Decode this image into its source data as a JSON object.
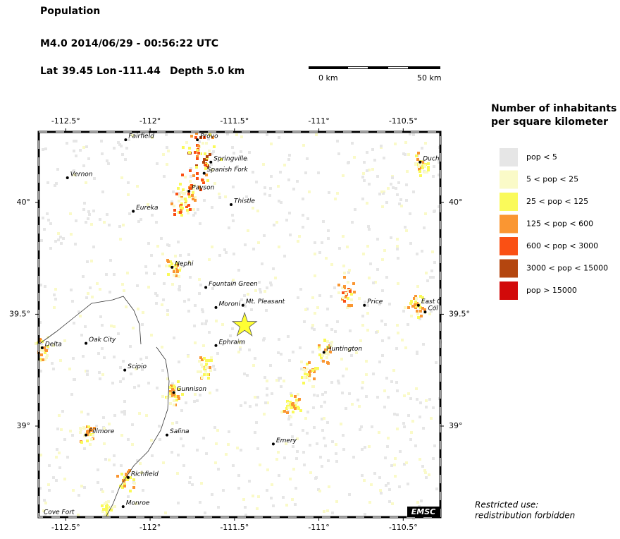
{
  "header": {
    "title": "Population",
    "event": "M4.0  2014/06/29 - 00:56:22 UTC",
    "lat": {
      "label": "Lat",
      "value": 39.45
    },
    "lon": {
      "label": "Lon",
      "value": -111.44
    },
    "depth": "Depth  5.0 km"
  },
  "scale": {
    "start": "0 km",
    "end": "50 km"
  },
  "map": {
    "xlim": [
      -112.66,
      -110.28
    ],
    "ylim": [
      38.593,
      40.315
    ],
    "lon_ticks": [
      {
        "value": -112.5,
        "label": "-112.5°"
      },
      {
        "value": -112,
        "label": "-112°"
      },
      {
        "value": -111.5,
        "label": "-111.5°"
      },
      {
        "value": -111,
        "label": "-111°"
      },
      {
        "value": -110.5,
        "label": "-110.5°"
      }
    ],
    "lat_ticks": [
      {
        "value": 40,
        "label": "40°"
      },
      {
        "value": 39.5,
        "label": "39.5°"
      },
      {
        "value": 39,
        "label": "39°"
      }
    ],
    "towns": [
      {
        "name": "Fairfield",
        "lon": -112.145,
        "lat": 40.28
      },
      {
        "name": "Provo",
        "lon": -111.72,
        "lat": 40.28
      },
      {
        "name": "Springville",
        "lon": -111.64,
        "lat": 40.18
      },
      {
        "name": "Spanish Fork",
        "lon": -111.68,
        "lat": 40.13
      },
      {
        "name": "Vernon",
        "lon": -112.49,
        "lat": 40.11
      },
      {
        "name": "Payson",
        "lon": -111.77,
        "lat": 40.05
      },
      {
        "name": "Thistle",
        "lon": -111.52,
        "lat": 39.99
      },
      {
        "name": "Eureka",
        "lon": -112.1,
        "lat": 39.96
      },
      {
        "name": "Nephi",
        "lon": -111.87,
        "lat": 39.71
      },
      {
        "name": "Fountain Green",
        "lon": -111.67,
        "lat": 39.62
      },
      {
        "name": "Mt. Pleasant",
        "lon": -111.45,
        "lat": 39.54
      },
      {
        "name": "Moroni",
        "lon": -111.61,
        "lat": 39.53
      },
      {
        "name": "Price",
        "lon": -110.73,
        "lat": 39.54
      },
      {
        "name": "East C",
        "lon": -110.41,
        "lat": 39.54
      },
      {
        "name": "Col",
        "lon": -110.37,
        "lat": 39.51
      },
      {
        "name": "Duch",
        "lon": -110.4,
        "lat": 40.18
      },
      {
        "name": "Delta",
        "lon": -112.64,
        "lat": 39.35
      },
      {
        "name": "Oak City",
        "lon": -112.38,
        "lat": 39.37
      },
      {
        "name": "Ephraim",
        "lon": -111.61,
        "lat": 39.36
      },
      {
        "name": "Huntington",
        "lon": -110.97,
        "lat": 39.33
      },
      {
        "name": "Scipio",
        "lon": -112.15,
        "lat": 39.25
      },
      {
        "name": "Gunnison",
        "lon": -111.86,
        "lat": 39.15
      },
      {
        "name": "Fillmore",
        "lon": -112.38,
        "lat": 38.96
      },
      {
        "name": "Salina",
        "lon": -111.9,
        "lat": 38.96
      },
      {
        "name": "Emery",
        "lon": -111.27,
        "lat": 38.92
      },
      {
        "name": "Richfield",
        "lon": -112.13,
        "lat": 38.77
      },
      {
        "name": "Monroe",
        "lon": -112.16,
        "lat": 38.64
      }
    ],
    "cove_fort": "Cove Fort",
    "logo": "EMSC"
  },
  "legend": {
    "title": [
      "Number of inhabitants",
      "per square kilometer"
    ],
    "items": [
      {
        "label": "pop < 5",
        "color": "#e6e6e6"
      },
      {
        "label": "5 < pop < 25",
        "color": "#fafac8"
      },
      {
        "label": "25 < pop < 125",
        "color": "#fafa5a"
      },
      {
        "label": "125 < pop < 600",
        "color": "#fa9632"
      },
      {
        "label": "600 < pop < 3000",
        "color": "#fa5014"
      },
      {
        "label": "3000 < pop < 15000",
        "color": "#b4460f"
      },
      {
        "label": "pop > 15000",
        "color": "#d20a0a"
      }
    ]
  },
  "footer": [
    "Restricted use:",
    "redistribution forbidden"
  ]
}
